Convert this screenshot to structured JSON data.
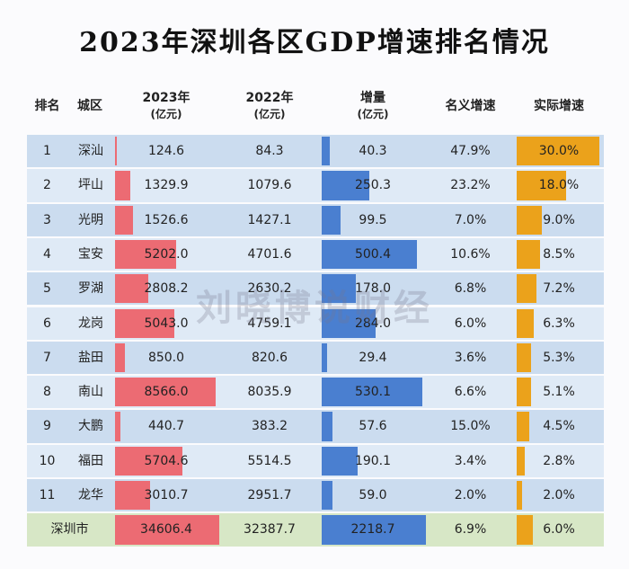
{
  "title": "2023年深圳各区GDP增速排名情况",
  "watermark": "刘晓博说财经",
  "table": {
    "headers": [
      [
        "排名"
      ],
      [
        "城区"
      ],
      [
        "2023年",
        "(亿元)"
      ],
      [
        "2022年",
        "(亿元)"
      ],
      [
        "增量",
        "(亿元)"
      ],
      [
        "名义增速"
      ],
      [
        "实际增速"
      ]
    ],
    "rows": [
      [
        "1",
        "深汕",
        "124.6",
        "84.3",
        "40.3",
        "47.9%",
        "30.0%"
      ],
      [
        "2",
        "坪山",
        "1329.9",
        "1079.6",
        "250.3",
        "23.2%",
        "18.0%"
      ],
      [
        "3",
        "光明",
        "1526.6",
        "1427.1",
        "99.5",
        "7.0%",
        "9.0%"
      ],
      [
        "4",
        "宝安",
        "5202.0",
        "4701.6",
        "500.4",
        "10.6%",
        "8.5%"
      ],
      [
        "5",
        "罗湖",
        "2808.2",
        "2630.2",
        "178.0",
        "6.8%",
        "7.2%"
      ],
      [
        "6",
        "龙岗",
        "5043.0",
        "4759.1",
        "284.0",
        "6.0%",
        "6.3%"
      ],
      [
        "7",
        "盐田",
        "850.0",
        "820.6",
        "29.4",
        "3.6%",
        "5.3%"
      ],
      [
        "8",
        "南山",
        "8566.0",
        "8035.9",
        "530.1",
        "6.6%",
        "5.1%"
      ],
      [
        "9",
        "大鹏",
        "440.7",
        "383.2",
        "57.6",
        "15.0%",
        "4.5%"
      ],
      [
        "10",
        "福田",
        "5704.6",
        "5514.5",
        "190.1",
        "3.4%",
        "2.8%"
      ],
      [
        "11",
        "龙华",
        "3010.7",
        "2951.7",
        "59.0",
        "2.0%",
        "2.0%"
      ]
    ],
    "total": [
      "深圳市",
      "34606.4",
      "32387.7",
      "2218.7",
      "6.9%",
      "6.0%"
    ]
  }
}
